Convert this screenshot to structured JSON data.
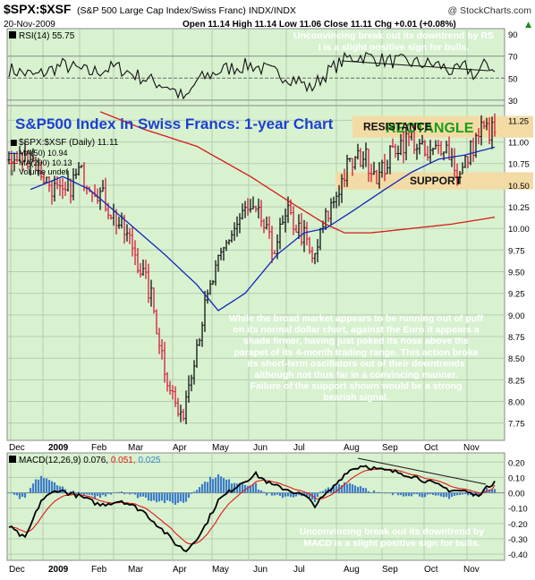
{
  "header": {
    "symbol": "$SPX:$XSF",
    "name": "(S&P 500 Large Cap Index/Swiss Franc) INDX/INDX",
    "watermark": "@ StockCharts.com",
    "date": "20-Nov-2009",
    "quote": "Open 11.14  High 11.14  Low 11.06  Close 11.11  Chg +0.01 (+0.08%)",
    "quote_suffix": "▲"
  },
  "colors": {
    "panel_bg": "#d8f2d0",
    "price_up": "#111111",
    "price_down": "#d41a3a",
    "ma50": "#1428b8",
    "ma200": "#d81818",
    "rsi_line": "#111111",
    "macd_line": "#000000",
    "signal_line": "#e01818",
    "histogram": "#3e7ec8",
    "band": "#f3dba6",
    "title_text": "#1c40d0",
    "annotation_text": "#ffffff",
    "rectangle_text": "#16a016"
  },
  "chart_data": [
    {
      "type": "line",
      "panel": "RSI",
      "legend": "RSI(14) 55.75",
      "ylim": [
        25,
        95
      ],
      "y_ticks": [
        "90",
        "70",
        "50",
        "30"
      ],
      "reference_lines": [
        70,
        50,
        30
      ],
      "last_value": 55.75,
      "annotation": "Unconvincing break out its downtrend by RSI is a slight positive sign for bulls."
    },
    {
      "type": "line",
      "panel": "Price",
      "title": "S&P500 Index in Swiss Francs: 1-year Chart",
      "legend": [
        {
          "icon": "■",
          "label": "$SPX:$XSF (Daily) 11.11"
        },
        {
          "icon": "—",
          "label": "MA(50) 10.94"
        },
        {
          "icon": "—",
          "label": "MA(200) 10.13"
        },
        {
          "icon": "▮",
          "label": "Volume undef"
        }
      ],
      "ylim": [
        7.55,
        11.42
      ],
      "y_ticks": [
        "11.25",
        "11.00",
        "10.75",
        "10.50",
        "10.25",
        "10.00",
        "9.75",
        "9.50",
        "9.25",
        "9.00",
        "8.75",
        "8.50",
        "8.25",
        "8.00",
        "7.75"
      ],
      "x_tick_labels": [
        "Dec",
        "2009",
        "Feb",
        "Mar",
        "Apr",
        "May",
        "Jun",
        "Jul",
        "Aug",
        "Sep",
        "Oct",
        "Nov"
      ],
      "series": [
        {
          "name": "$SPX:$XSF (Daily)",
          "last": 11.11,
          "keypoints": [
            [
              0,
              10.75
            ],
            [
              8,
              10.85
            ],
            [
              14,
              10.55
            ],
            [
              20,
              10.35
            ],
            [
              26,
              10.65
            ],
            [
              33,
              10.45
            ],
            [
              40,
              10.1
            ],
            [
              46,
              9.8
            ],
            [
              53,
              9.2
            ],
            [
              58,
              8.4
            ],
            [
              64,
              7.75
            ],
            [
              68,
              8.4
            ],
            [
              72,
              8.95
            ],
            [
              76,
              9.4
            ],
            [
              82,
              9.9
            ],
            [
              88,
              10.2
            ],
            [
              94,
              10.1
            ],
            [
              98,
              9.75
            ],
            [
              104,
              10.15
            ],
            [
              110,
              9.9
            ],
            [
              113,
              9.6
            ],
            [
              118,
              10.1
            ],
            [
              126,
              10.7
            ],
            [
              132,
              10.85
            ],
            [
              138,
              10.6
            ],
            [
              144,
              10.95
            ],
            [
              150,
              11.05
            ],
            [
              156,
              10.8
            ],
            [
              162,
              11.0
            ],
            [
              168,
              10.6
            ],
            [
              172,
              10.9
            ],
            [
              176,
              11.15
            ],
            [
              181,
              11.11
            ]
          ]
        },
        {
          "name": "MA(50)",
          "last": 10.94,
          "keypoints": [
            [
              8,
              10.45
            ],
            [
              20,
              10.6
            ],
            [
              30,
              10.45
            ],
            [
              45,
              10.05
            ],
            [
              58,
              9.7
            ],
            [
              70,
              9.35
            ],
            [
              78,
              9.05
            ],
            [
              88,
              9.25
            ],
            [
              100,
              9.7
            ],
            [
              110,
              9.95
            ],
            [
              118,
              10.0
            ],
            [
              128,
              10.2
            ],
            [
              140,
              10.45
            ],
            [
              150,
              10.65
            ],
            [
              160,
              10.8
            ],
            [
              170,
              10.85
            ],
            [
              181,
              10.94
            ]
          ]
        },
        {
          "name": "MA(200)",
          "last": 10.13,
          "keypoints": [
            [
              34,
              11.35
            ],
            [
              50,
              11.15
            ],
            [
              70,
              10.95
            ],
            [
              90,
              10.6
            ],
            [
              105,
              10.3
            ],
            [
              118,
              10.05
            ],
            [
              125,
              9.95
            ],
            [
              135,
              9.95
            ],
            [
              150,
              10.0
            ],
            [
              165,
              10.05
            ],
            [
              181,
              10.13
            ]
          ]
        }
      ],
      "annotations": {
        "rectangle_label": "RECTANGLE",
        "resistance_label": "RESISTANCE",
        "support_label": "SUPPORT",
        "resistance_level": 11.25,
        "support_level": 10.55,
        "commentary": [
          "While the broad market appears to be running out of puff",
          "on its normal dollar chart, against the Euro it appears a",
          "shade firmer, having just poked its nose above the",
          "parapet of its 4-month trading range. This action broke",
          "its short-term oscillators out of their downtrends",
          "although not thus far in a convincing manner.",
          "Failure of the support shown would be a strong",
          "bearish signal."
        ]
      }
    },
    {
      "type": "line",
      "panel": "MACD",
      "legend_parts": [
        "MACD(12,26,9) 0.076,",
        "0.051,",
        "0.025"
      ],
      "ylim": [
        -0.44,
        0.26
      ],
      "y_ticks": [
        "0.20",
        "0.10",
        "0.00",
        "-0.10",
        "-0.20",
        "-0.30",
        "-0.40"
      ],
      "values": {
        "macd": 0.076,
        "signal": 0.051,
        "histogram": 0.025
      },
      "x_tick_labels": [
        "Dec",
        "2009",
        "Feb",
        "Mar",
        "Apr",
        "May",
        "Jun",
        "Jul",
        "Aug",
        "Sep",
        "Oct",
        "Nov"
      ],
      "annotation": [
        "Unconvincing break out its downtrend by",
        "MACD is a slight positive sign for bulls."
      ]
    }
  ]
}
